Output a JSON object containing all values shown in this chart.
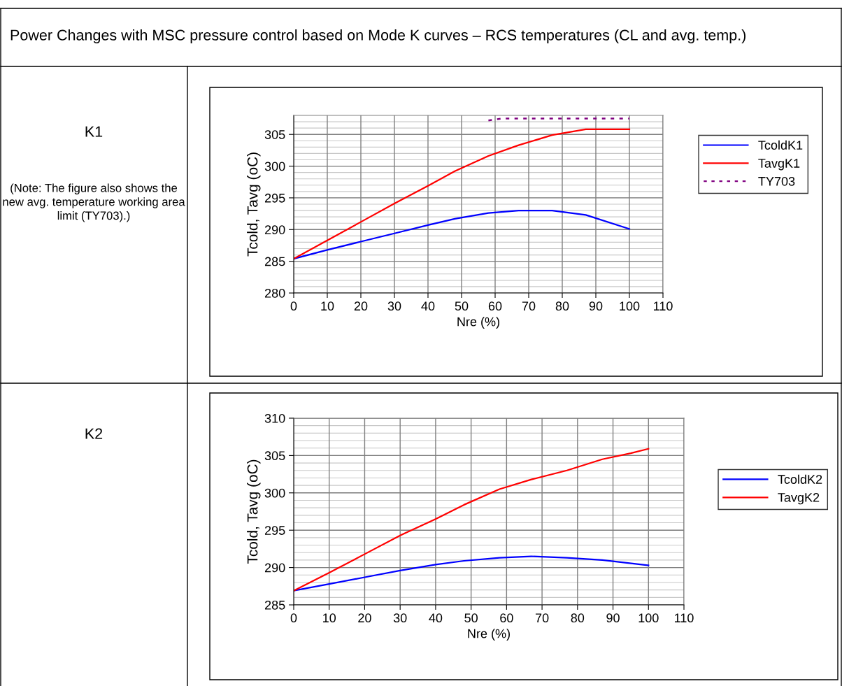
{
  "chart_data": [
    {
      "type": "line",
      "title": "Power Changes with MSC pressure control based on Mode K curves – RCS temperatures (CL and avg. temp.)",
      "annotations": [
        "K1",
        "(Note: The figure also shows the new avg. temperature working area limit (TY703).)"
      ],
      "xlabel": "Nre (%)",
      "ylabel": "Tcold, Tavg (oC)",
      "xlim": [
        0,
        110
      ],
      "xticks": [
        0,
        10,
        20,
        30,
        40,
        50,
        60,
        70,
        80,
        90,
        100,
        110
      ],
      "ylim": [
        280,
        308
      ],
      "yticks": [
        280,
        285,
        290,
        295,
        300,
        305
      ],
      "grid": true,
      "legend": "right",
      "series": [
        {
          "name": "TcoldK1",
          "color": "#0000ff",
          "x": [
            0,
            10,
            20,
            30,
            40,
            48,
            58,
            67,
            77,
            87,
            100
          ],
          "values": [
            285.4,
            286.8,
            288.1,
            289.4,
            290.7,
            291.7,
            292.6,
            293.0,
            293.0,
            292.3,
            290.1
          ]
        },
        {
          "name": "TavgK1",
          "color": "#ff0000",
          "x": [
            0,
            10,
            20,
            30,
            40,
            48,
            58,
            67,
            77,
            87,
            100
          ],
          "values": [
            285.4,
            288.3,
            291.2,
            294.1,
            296.9,
            299.2,
            301.6,
            303.3,
            304.9,
            305.8,
            305.8
          ]
        },
        {
          "name": "TY703",
          "color": "#800080",
          "line_style": "dotted",
          "x": [
            58,
            62,
            100
          ],
          "values": [
            307.2,
            307.5,
            307.5
          ]
        }
      ]
    },
    {
      "type": "line",
      "annotations": [
        "K2"
      ],
      "xlabel": "Nre (%)",
      "ylabel": "Tcold, Tavg (oC)",
      "xlim": [
        0,
        110
      ],
      "xticks": [
        0,
        10,
        20,
        30,
        40,
        50,
        60,
        70,
        80,
        90,
        100,
        110
      ],
      "ylim": [
        285,
        310
      ],
      "yticks": [
        285,
        290,
        295,
        300,
        305,
        310
      ],
      "grid": true,
      "legend": "right",
      "series": [
        {
          "name": "TcoldK2",
          "color": "#0000ff",
          "x": [
            0,
            10,
            20,
            30,
            40,
            48,
            58,
            67,
            77,
            87,
            100
          ],
          "values": [
            286.9,
            287.8,
            288.7,
            289.6,
            290.4,
            290.9,
            291.3,
            291.5,
            291.3,
            291.0,
            290.3
          ]
        },
        {
          "name": "TavgK2",
          "color": "#ff0000",
          "x": [
            0,
            10,
            20,
            30,
            40,
            48,
            58,
            67,
            77,
            87,
            95,
            100
          ],
          "values": [
            286.9,
            289.3,
            291.8,
            294.3,
            296.5,
            298.4,
            300.5,
            301.8,
            303.0,
            304.5,
            305.3,
            305.9
          ]
        }
      ]
    }
  ]
}
